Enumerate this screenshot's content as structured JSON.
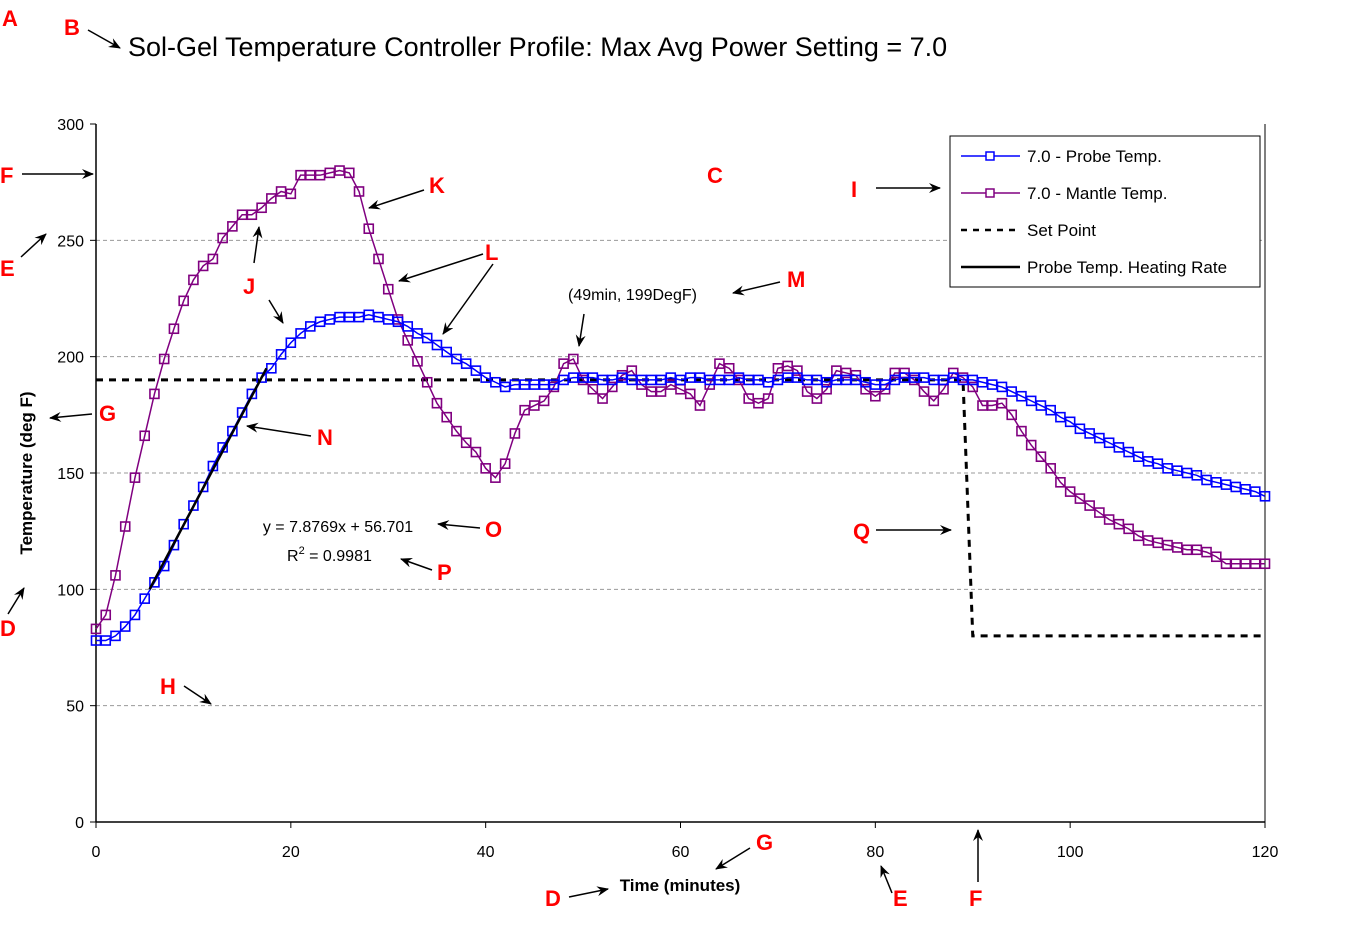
{
  "chart_data": {
    "type": "line",
    "title": "Sol-Gel Temperature Controller Profile:  Max Avg Power Setting = 7.0",
    "xlabel": "Time (minutes)",
    "ylabel": "Temperature (deg F)",
    "xlim": [
      0,
      120
    ],
    "ylim": [
      0,
      300
    ],
    "xticks": [
      0,
      20,
      40,
      60,
      80,
      100,
      120
    ],
    "yticks": [
      0,
      50,
      100,
      150,
      200,
      250,
      300
    ],
    "xtick_labels": [
      "0",
      "20",
      "40",
      "60",
      "80",
      "100",
      "120"
    ],
    "ytick_labels": [
      "0",
      "50",
      "100",
      "150",
      "200",
      "250",
      "300"
    ],
    "grid": "horizontal dashed",
    "legend_position": "top-right",
    "legend": [
      {
        "label": "7.0 - Probe Temp.",
        "color": "#0000ff",
        "style": "line-square-marker"
      },
      {
        "label": "7.0 - Mantle Temp.",
        "color": "#800080",
        "style": "line-square-marker"
      },
      {
        "label": "Set Point",
        "color": "#000000",
        "style": "dashed"
      },
      {
        "label": "Probe Temp. Heating Rate",
        "color": "#000000",
        "style": "solid-thick"
      }
    ],
    "series": [
      {
        "name": "7.0 - Probe Temp.",
        "color": "#0000ff",
        "x": [
          0,
          1,
          2,
          3,
          4,
          5,
          6,
          7,
          8,
          9,
          10,
          11,
          12,
          13,
          14,
          15,
          16,
          17,
          18,
          19,
          20,
          21,
          22,
          23,
          24,
          25,
          26,
          27,
          28,
          29,
          30,
          31,
          32,
          33,
          34,
          35,
          36,
          37,
          38,
          39,
          40,
          41,
          42,
          43,
          44,
          45,
          46,
          47,
          48,
          49,
          50,
          51,
          52,
          53,
          54,
          55,
          56,
          57,
          58,
          59,
          60,
          61,
          62,
          63,
          64,
          65,
          66,
          67,
          68,
          69,
          70,
          71,
          72,
          73,
          74,
          75,
          76,
          77,
          78,
          79,
          80,
          81,
          82,
          83,
          84,
          85,
          86,
          87,
          88,
          89,
          90,
          91,
          92,
          93,
          94,
          95,
          96,
          97,
          98,
          99,
          100,
          101,
          102,
          103,
          104,
          105,
          106,
          107,
          108,
          109,
          110,
          111,
          112,
          113,
          114,
          115,
          116,
          117,
          118,
          119,
          120
        ],
        "y": [
          78,
          78,
          80,
          84,
          89,
          96,
          103,
          110,
          119,
          128,
          136,
          144,
          153,
          161,
          168,
          176,
          184,
          191,
          195,
          201,
          206,
          210,
          213,
          215,
          216,
          217,
          217,
          217,
          218,
          217,
          216,
          215,
          213,
          210,
          208,
          205,
          202,
          199,
          197,
          194,
          191,
          189,
          187,
          188,
          188,
          188,
          188,
          188,
          190,
          191,
          191,
          191,
          190,
          190,
          191,
          190,
          190,
          190,
          190,
          191,
          190,
          191,
          191,
          190,
          190,
          190,
          191,
          190,
          190,
          189,
          190,
          191,
          191,
          190,
          190,
          189,
          190,
          190,
          190,
          189,
          188,
          188,
          190,
          191,
          191,
          191,
          190,
          190,
          191,
          190,
          190,
          189,
          188,
          187,
          185,
          183,
          181,
          179,
          177,
          174,
          172,
          169,
          167,
          165,
          163,
          161,
          159,
          157,
          155,
          154,
          152,
          151,
          150,
          149,
          147,
          146,
          145,
          144,
          143,
          142,
          140
        ]
      },
      {
        "name": "7.0 - Mantle Temp.",
        "color": "#800080",
        "x": [
          0,
          1,
          2,
          3,
          4,
          5,
          6,
          7,
          8,
          9,
          10,
          11,
          12,
          13,
          14,
          15,
          16,
          17,
          18,
          19,
          20,
          21,
          22,
          23,
          24,
          25,
          26,
          27,
          28,
          29,
          30,
          31,
          32,
          33,
          34,
          35,
          36,
          37,
          38,
          39,
          40,
          41,
          42,
          43,
          44,
          45,
          46,
          47,
          48,
          49,
          50,
          51,
          52,
          53,
          54,
          55,
          56,
          57,
          58,
          59,
          60,
          61,
          62,
          63,
          64,
          65,
          66,
          67,
          68,
          69,
          70,
          71,
          72,
          73,
          74,
          75,
          76,
          77,
          78,
          79,
          80,
          81,
          82,
          83,
          84,
          85,
          86,
          87,
          88,
          89,
          90,
          91,
          92,
          93,
          94,
          95,
          96,
          97,
          98,
          99,
          100,
          101,
          102,
          103,
          104,
          105,
          106,
          107,
          108,
          109,
          110,
          111,
          112,
          113,
          114,
          115,
          116,
          117,
          118,
          119,
          120
        ],
        "y": [
          83,
          89,
          106,
          127,
          148,
          166,
          184,
          199,
          212,
          224,
          233,
          239,
          242,
          251,
          256,
          261,
          261,
          264,
          268,
          271,
          270,
          278,
          278,
          278,
          279,
          280,
          279,
          271,
          255,
          242,
          229,
          216,
          207,
          198,
          189,
          180,
          174,
          168,
          163,
          159,
          152,
          148,
          154,
          167,
          177,
          179,
          181,
          187,
          197,
          199,
          190,
          186,
          182,
          187,
          192,
          194,
          188,
          185,
          185,
          188,
          186,
          184,
          179,
          188,
          197,
          195,
          190,
          182,
          180,
          182,
          195,
          196,
          194,
          185,
          182,
          186,
          194,
          193,
          192,
          186,
          183,
          186,
          193,
          193,
          190,
          185,
          181,
          186,
          193,
          191,
          187,
          179,
          179,
          180,
          175,
          168,
          162,
          157,
          152,
          146,
          142,
          139,
          136,
          133,
          130,
          128,
          126,
          123,
          121,
          120,
          119,
          118,
          117,
          117,
          116,
          114,
          111,
          111,
          111,
          111,
          111
        ]
      },
      {
        "name": "Set Point",
        "color": "#000000",
        "x": [
          0,
          89,
          90,
          120
        ],
        "y": [
          190,
          190,
          80,
          80
        ]
      },
      {
        "name": "Probe Temp. Heating Rate",
        "color": "#000000",
        "x": [
          5.5,
          17.5
        ],
        "y": [
          100,
          195
        ],
        "fit": {
          "slope": 7.8769,
          "intercept": 56.701,
          "r2": 0.9981
        }
      }
    ],
    "annotations": {
      "fit_equation": "y = 7.8769x + 56.701",
      "r_squared_prefix": "R",
      "r_squared_sup": "2",
      "r_squared_value": " = 0.9981",
      "peak_label": "(49min, 199DegF)"
    }
  },
  "callout_letters": {
    "A": "A",
    "B": "B",
    "C": "C",
    "D_left": "D",
    "D_bottom": "D",
    "E_left": "E",
    "E_bottom": "E",
    "F_left": "F",
    "F_bottom": "F",
    "G_left": "G",
    "G_bottom": "G",
    "H": "H",
    "I": "I",
    "J": "J",
    "K": "K",
    "L": "L",
    "M": "M",
    "N": "N",
    "O": "O",
    "P": "P",
    "Q": "Q"
  },
  "colors": {
    "probe": "#0000ff",
    "mantle": "#800080",
    "callout": "#ff0000",
    "grid": "#999999"
  }
}
